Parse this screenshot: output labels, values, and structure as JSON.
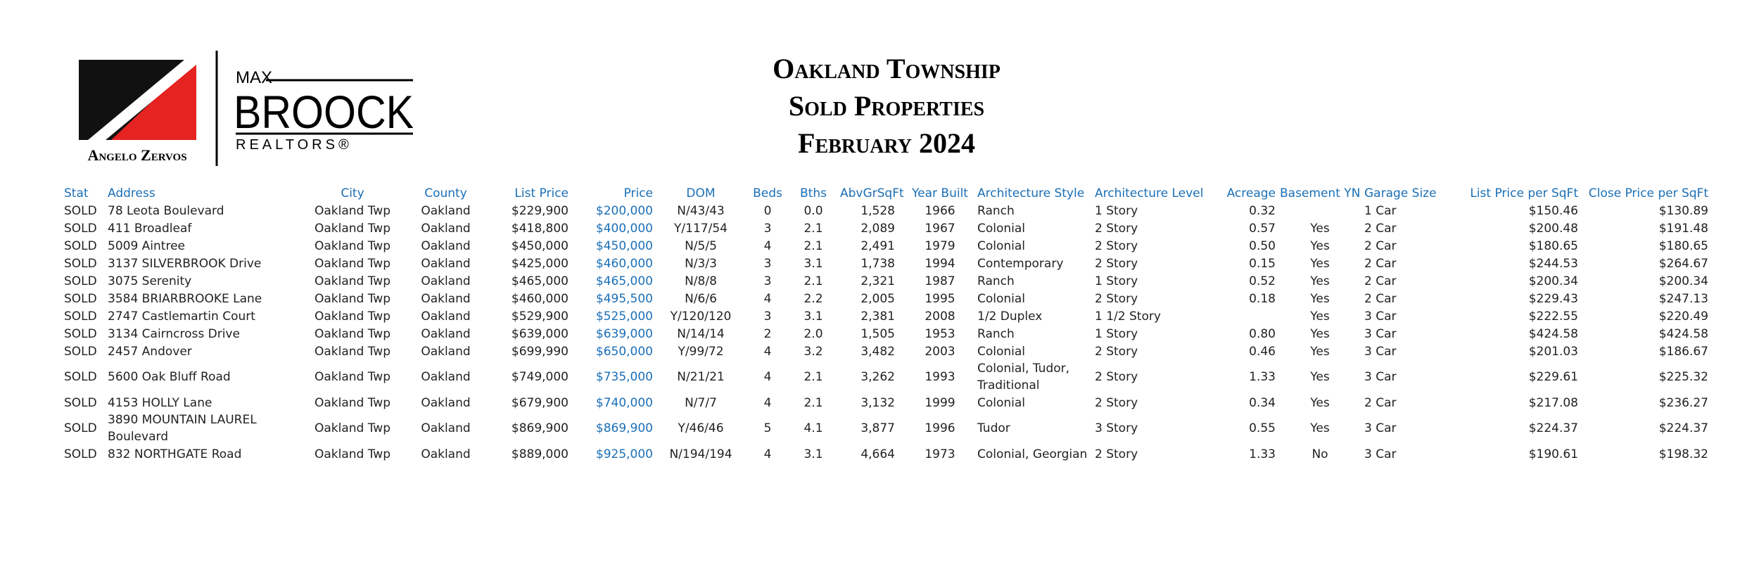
{
  "header": {
    "logo": {
      "max": "MAX",
      "brand": "BROOCK",
      "realtors": "REALTORS®",
      "agent": "Angelo Zervos"
    },
    "title": [
      "Oakland Township",
      "Sold Properties",
      "February 2024"
    ]
  },
  "table": {
    "columns": [
      "Stat",
      "Address",
      "City",
      "County",
      "List Price",
      "Price",
      "DOM",
      "Beds",
      "Bths",
      "AbvGrSqFt",
      "Year Built",
      "Architecture Style",
      "Architecture Level",
      "Acreage",
      "Basement YN",
      "Garage Size",
      "List Price per SqFt",
      "Close Price per SqFt"
    ],
    "rows": [
      [
        "SOLD",
        "78 Leota Boulevard",
        "Oakland Twp",
        "Oakland",
        "$229,900",
        "$200,000",
        "N/43/43",
        "0",
        "0.0",
        "1,528",
        "1966",
        "Ranch",
        "1 Story",
        "0.32",
        null,
        "1 Car",
        "$150.46",
        "$130.89"
      ],
      [
        "SOLD",
        "411 Broadleaf",
        "Oakland Twp",
        "Oakland",
        "$418,800",
        "$400,000",
        "Y/117/54",
        "3",
        "2.1",
        "2,089",
        "1967",
        "Colonial",
        "2 Story",
        "0.57",
        "Yes",
        "2 Car",
        "$200.48",
        "$191.48"
      ],
      [
        "SOLD",
        "5009 Aintree",
        "Oakland Twp",
        "Oakland",
        "$450,000",
        "$450,000",
        "N/5/5",
        "4",
        "2.1",
        "2,491",
        "1979",
        "Colonial",
        "2 Story",
        "0.50",
        "Yes",
        "2 Car",
        "$180.65",
        "$180.65"
      ],
      [
        "SOLD",
        "3137 SILVERBROOK Drive",
        "Oakland Twp",
        "Oakland",
        "$425,000",
        "$460,000",
        "N/3/3",
        "3",
        "3.1",
        "1,738",
        "1994",
        "Contemporary",
        "2 Story",
        "0.15",
        "Yes",
        "2 Car",
        "$244.53",
        "$264.67"
      ],
      [
        "SOLD",
        "3075 Serenity",
        "Oakland Twp",
        "Oakland",
        "$465,000",
        "$465,000",
        "N/8/8",
        "3",
        "2.1",
        "2,321",
        "1987",
        "Ranch",
        "1 Story",
        "0.52",
        "Yes",
        "2 Car",
        "$200.34",
        "$200.34"
      ],
      [
        "SOLD",
        "3584 BRIARBROOKE Lane",
        "Oakland Twp",
        "Oakland",
        "$460,000",
        "$495,500",
        "N/6/6",
        "4",
        "2.2",
        "2,005",
        "1995",
        "Colonial",
        "2 Story",
        "0.18",
        "Yes",
        "2 Car",
        "$229.43",
        "$247.13"
      ],
      [
        "SOLD",
        "2747 Castlemartin Court",
        "Oakland Twp",
        "Oakland",
        "$529,900",
        "$525,000",
        "Y/120/120",
        "3",
        "3.1",
        "2,381",
        "2008",
        "1/2 Duplex",
        "1 1/2 Story",
        null,
        "Yes",
        "3 Car",
        "$222.55",
        "$220.49"
      ],
      [
        "SOLD",
        "3134 Cairncross Drive",
        "Oakland Twp",
        "Oakland",
        "$639,000",
        "$639,000",
        "N/14/14",
        "2",
        "2.0",
        "1,505",
        "1953",
        "Ranch",
        "1 Story",
        "0.80",
        "Yes",
        "3 Car",
        "$424.58",
        "$424.58"
      ],
      [
        "SOLD",
        "2457 Andover",
        "Oakland Twp",
        "Oakland",
        "$699,990",
        "$650,000",
        "Y/99/72",
        "4",
        "3.2",
        "3,482",
        "2003",
        "Colonial",
        "2 Story",
        "0.46",
        "Yes",
        "3 Car",
        "$201.03",
        "$186.67"
      ],
      [
        "SOLD",
        "5600 Oak Bluff Road",
        "Oakland Twp",
        "Oakland",
        "$749,000",
        "$735,000",
        "N/21/21",
        "4",
        "2.1",
        "3,262",
        "1993",
        "Colonial, Tudor, Traditional",
        "2 Story",
        "1.33",
        "Yes",
        "3 Car",
        "$229.61",
        "$225.32"
      ],
      [
        "SOLD",
        "4153 HOLLY Lane",
        "Oakland Twp",
        "Oakland",
        "$679,900",
        "$740,000",
        "N/7/7",
        "4",
        "2.1",
        "3,132",
        "1999",
        "Colonial",
        "2 Story",
        "0.34",
        "Yes",
        "2 Car",
        "$217.08",
        "$236.27"
      ],
      [
        "SOLD",
        "3890 MOUNTAIN LAUREL Boulevard",
        "Oakland Twp",
        "Oakland",
        "$869,900",
        "$869,900",
        "Y/46/46",
        "5",
        "4.1",
        "3,877",
        "1996",
        "Tudor",
        "3 Story",
        "0.55",
        "Yes",
        "3 Car",
        "$224.37",
        "$224.37"
      ],
      [
        "SOLD",
        "832 NORTHGATE Road",
        "Oakland Twp",
        "Oakland",
        "$889,000",
        "$925,000",
        "N/194/194",
        "4",
        "3.1",
        "4,664",
        "1973",
        "Colonial, Georgian",
        "2 Story",
        "1.33",
        "No",
        "3 Car",
        "$190.61",
        "$198.32"
      ]
    ]
  }
}
